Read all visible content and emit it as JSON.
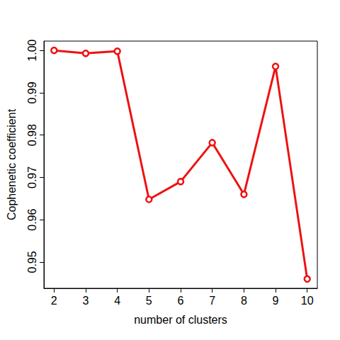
{
  "chart_data": {
    "type": "line",
    "x_label": "number of clusters",
    "y_label": "Cophenetic coefficient",
    "x": [
      2,
      3,
      4,
      5,
      6,
      7,
      8,
      9,
      10
    ],
    "values": [
      1.0,
      0.9993,
      0.9998,
      0.9648,
      0.969,
      0.9782,
      0.966,
      0.9962,
      0.946
    ],
    "color": "#ee1111",
    "marker": "circle",
    "line_style": "solid",
    "xlim": [
      1.68,
      10.32
    ],
    "xticks": [
      2,
      3,
      4,
      5,
      6,
      7,
      8,
      9,
      10
    ],
    "ylim": [
      0.9438,
      1.0022
    ],
    "yticks": [
      0.95,
      0.96,
      0.97,
      0.98,
      0.99,
      {
        "value": 1,
        "label": "1.00"
      }
    ],
    "grid": false
  }
}
